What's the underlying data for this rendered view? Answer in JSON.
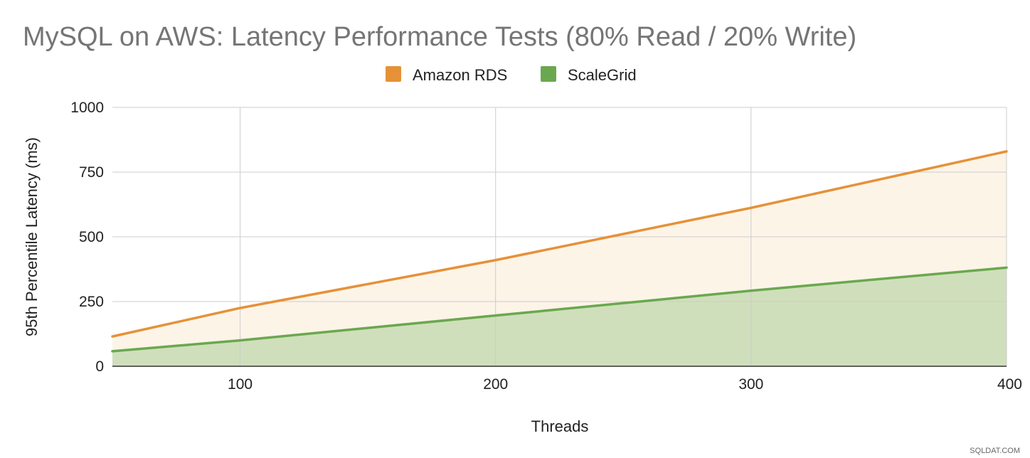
{
  "chart_data": {
    "type": "area",
    "title": "MySQL on AWS: Latency Performance Tests (80% Read / 20% Write)",
    "xlabel": "Threads",
    "ylabel": "95th Percentile Latency (ms)",
    "x": [
      50,
      100,
      200,
      300,
      400
    ],
    "xlim": [
      50,
      400
    ],
    "ylim": [
      0,
      1000
    ],
    "x_ticks": [
      100,
      200,
      300,
      400
    ],
    "y_ticks": [
      0,
      250,
      500,
      750,
      1000
    ],
    "grid": true,
    "legend_position": "top",
    "series": [
      {
        "name": "Amazon RDS",
        "values": [
          115,
          225,
          410,
          612,
          830
        ],
        "color": "#e69138",
        "fill_color": "#fdf4e8"
      },
      {
        "name": "ScaleGrid",
        "values": [
          58,
          100,
          196,
          292,
          381
        ],
        "color": "#6aa84f",
        "fill_color": "#d0dfbb"
      }
    ]
  },
  "watermark": "SQLDAT.COM"
}
